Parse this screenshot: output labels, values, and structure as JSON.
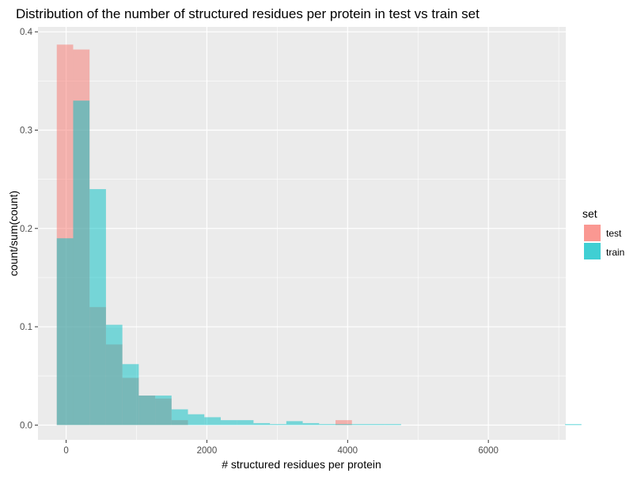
{
  "chart_data": {
    "type": "bar",
    "title": "Distribution of the number of structured residues per protein in test vs train set",
    "xlabel": "# structured residues per protein",
    "ylabel": "count/sum(count)",
    "xlim": [
      -400,
      7100
    ],
    "ylim": [
      -0.015,
      0.405
    ],
    "x_ticks": [
      0,
      2000,
      4000,
      6000
    ],
    "x_tick_labels": [
      "0",
      "2000",
      "4000",
      "6000"
    ],
    "y_ticks": [
      0.0,
      0.1,
      0.2,
      0.3,
      0.4
    ],
    "y_tick_labels": [
      "0.0",
      "0.1",
      "0.2",
      "0.3",
      "0.4"
    ],
    "bin_width": 233,
    "bin_start": -133,
    "legend": {
      "title": "set",
      "placement": "right"
    },
    "series": [
      {
        "name": "test",
        "color": "#F8766D",
        "values": [
          0.387,
          0.382,
          0.12,
          0.082,
          0.048,
          0.03,
          0.027,
          0.005,
          0,
          0,
          0,
          0,
          0,
          0,
          0,
          0,
          0,
          0.005,
          0,
          0,
          0,
          0,
          0,
          0,
          0,
          0,
          0,
          0,
          0,
          0,
          0,
          0
        ]
      },
      {
        "name": "train",
        "color": "#00BFC4",
        "values": [
          0.19,
          0.33,
          0.24,
          0.102,
          0.062,
          0.03,
          0.03,
          0.016,
          0.011,
          0.008,
          0.005,
          0.005,
          0.002,
          0.001,
          0.004,
          0.002,
          0.001,
          0.001,
          0.001,
          0.001,
          0.001,
          0,
          0,
          0,
          0,
          0,
          0,
          0,
          0,
          0,
          0,
          0.001
        ]
      }
    ]
  }
}
